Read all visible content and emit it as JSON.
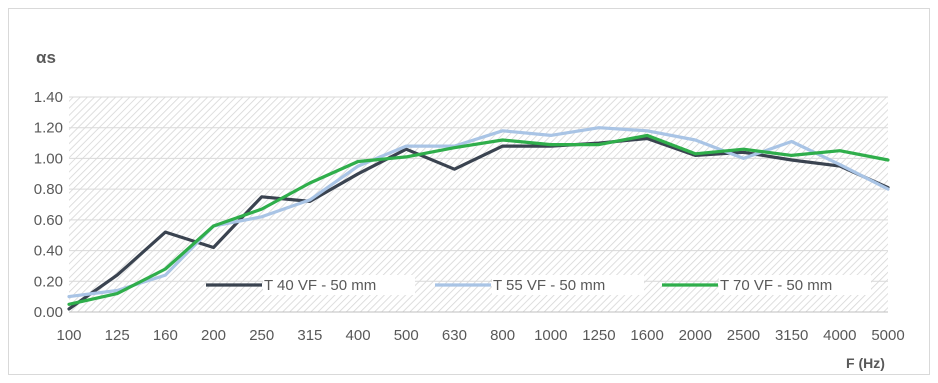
{
  "chart_data": {
    "type": "line",
    "title": "",
    "ylabel": "αs",
    "xlabel": "F (Hz)",
    "categories": [
      "100",
      "125",
      "160",
      "200",
      "250",
      "315",
      "400",
      "500",
      "630",
      "800",
      "1000",
      "1250",
      "1600",
      "2000",
      "2500",
      "3150",
      "4000",
      "5000"
    ],
    "ylim": [
      0,
      1.4
    ],
    "yticks": [
      "0.00",
      "0.20",
      "0.40",
      "0.60",
      "0.80",
      "1.00",
      "1.20",
      "1.40"
    ],
    "grid": true,
    "legend_position": "bottom-inside",
    "series": [
      {
        "name": "T 40 VF - 50 mm",
        "color": "#3a4350",
        "values": [
          0.02,
          0.24,
          0.52,
          0.42,
          0.75,
          0.72,
          0.9,
          1.06,
          0.93,
          1.08,
          1.08,
          1.1,
          1.13,
          1.02,
          1.04,
          0.99,
          0.95,
          0.81
        ]
      },
      {
        "name": "T 55 VF - 50 mm",
        "color": "#a9c4e5",
        "values": [
          0.1,
          0.14,
          0.24,
          0.56,
          0.62,
          0.73,
          0.95,
          1.08,
          1.08,
          1.18,
          1.15,
          1.2,
          1.18,
          1.12,
          1.0,
          1.11,
          0.96,
          0.8
        ]
      },
      {
        "name": "T 70 VF - 50 mm",
        "color": "#2fae4b",
        "values": [
          0.05,
          0.12,
          0.28,
          0.56,
          0.67,
          0.84,
          0.98,
          1.01,
          1.07,
          1.12,
          1.09,
          1.09,
          1.15,
          1.03,
          1.06,
          1.02,
          1.05,
          0.99
        ]
      }
    ]
  }
}
